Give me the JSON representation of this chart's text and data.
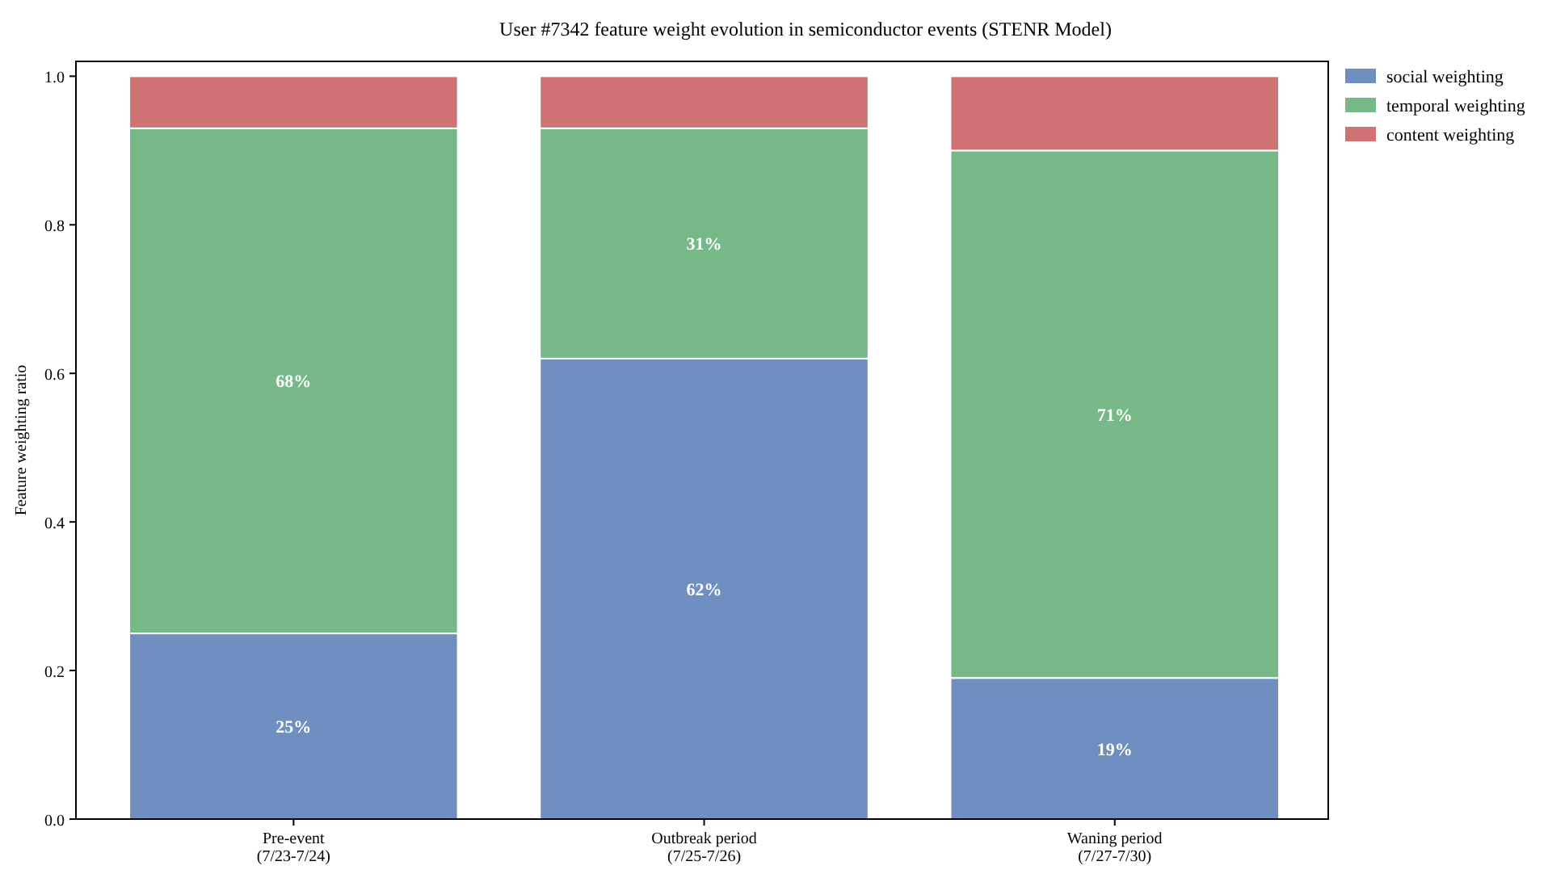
{
  "chart_data": {
    "type": "bar",
    "title": "User #7342 feature weight evolution in semiconductor events (STENR Model)",
    "ylabel": "Feature weighting ratio",
    "categories": [
      "Pre-event\n(7/23-7/24)",
      "Outbreak period\n(7/25-7/26)",
      "Waning period\n(7/27-7/30)"
    ],
    "stacked": true,
    "legend": "top right",
    "ylim": [
      0,
      1.02
    ],
    "yticks": [
      {
        "value": 0,
        "label": "0.0"
      },
      {
        "value": 0.2,
        "label": "0.2"
      },
      {
        "value": 0.4,
        "label": "0.4"
      },
      {
        "value": 0.6,
        "label": "0.6"
      },
      {
        "value": 0.8,
        "label": "0.8"
      },
      {
        "value": 1,
        "label": "1.0"
      }
    ],
    "series": [
      {
        "name": "social weighting",
        "color": "#6f8fc1",
        "values": [
          0.25,
          0.62,
          0.19
        ],
        "value_labels": [
          "25%",
          "62%",
          "19%"
        ]
      },
      {
        "name": "temporal weighting",
        "color": "#76b888",
        "values": [
          0.68,
          0.31,
          0.71
        ],
        "value_labels": [
          "68%",
          "31%",
          "71%"
        ]
      },
      {
        "name": "content weighting",
        "color": "#d07274",
        "values": [
          0.07,
          0.07,
          0.1
        ]
      }
    ]
  }
}
